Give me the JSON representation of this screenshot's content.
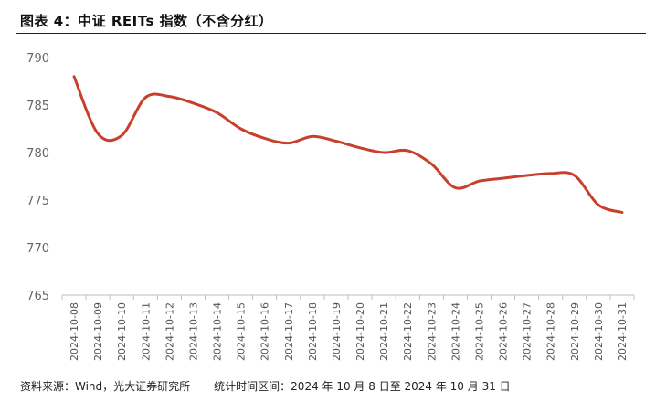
{
  "figure": {
    "title": "图表 4：中证 REITs 指数（不含分红）",
    "source": "资料来源：Wind，光大证券研究所",
    "period": "统计时间区间：2024 年 10 月 8 日至 2024 年 10 月 31 日"
  },
  "chart_data": {
    "type": "line",
    "title": "",
    "xlabel": "",
    "ylabel": "",
    "ylim": [
      765,
      790
    ],
    "yticks": [
      765,
      770,
      775,
      780,
      785,
      790
    ],
    "grid": false,
    "legend": "none",
    "x": [
      "2024-10-08",
      "2024-10-09",
      "2024-10-10",
      "2024-10-11",
      "2024-10-12",
      "2024-10-13",
      "2024-10-14",
      "2024-10-15",
      "2024-10-16",
      "2024-10-17",
      "2024-10-18",
      "2024-10-19",
      "2024-10-20",
      "2024-10-21",
      "2024-10-22",
      "2024-10-23",
      "2024-10-24",
      "2024-10-25",
      "2024-10-26",
      "2024-10-27",
      "2024-10-28",
      "2024-10-29",
      "2024-10-30",
      "2024-10-31"
    ],
    "series": [
      {
        "values": [
          788.0,
          782.0,
          781.8,
          785.8,
          785.9,
          785.2,
          784.2,
          782.5,
          781.5,
          781.0,
          781.7,
          781.2,
          780.5,
          780.0,
          780.2,
          778.8,
          776.3,
          777.0,
          777.3,
          777.6,
          777.8,
          777.6,
          774.5,
          773.7
        ],
        "color": "#c8402b"
      }
    ]
  }
}
